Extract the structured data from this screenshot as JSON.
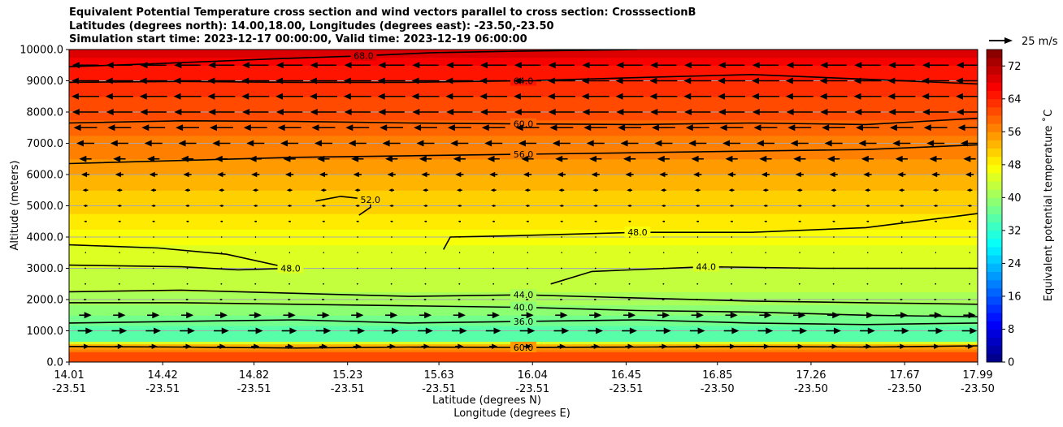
{
  "chart_data": {
    "type": "heatmap",
    "title_lines": [
      "Equivalent Potential Temperature cross section and wind vectors parallel to cross section: CrosssectionB",
      "Latitudes (degrees north): 14.00,18.00, Longitudes (degrees east): -23.50,-23.50",
      "Simulation start time: 2023-12-17 00:00:00, Valid time: 2023-12-19 06:00:00"
    ],
    "xlabel": "Latitude (degrees N)",
    "xlabel2": "Longitude (degrees E)",
    "ylabel": "Altitude (meters)",
    "xlim": [
      14.01,
      17.99
    ],
    "ylim": [
      0,
      10000
    ],
    "x_ticks_lat": [
      "14.01",
      "14.42",
      "14.82",
      "15.23",
      "15.63",
      "16.04",
      "16.45",
      "16.85",
      "17.26",
      "17.67",
      "17.99"
    ],
    "x_ticks_lon": [
      "-23.51",
      "-23.51",
      "-23.51",
      "-23.51",
      "-23.51",
      "-23.51",
      "-23.51",
      "-23.50",
      "-23.50",
      "-23.50",
      "-23.50"
    ],
    "y_ticks": [
      "0.0",
      "1000.0",
      "2000.0",
      "3000.0",
      "4000.0",
      "5000.0",
      "6000.0",
      "7000.0",
      "8000.0",
      "9000.0",
      "10000.0"
    ],
    "y_tick_values": [
      0,
      1000,
      2000,
      3000,
      4000,
      5000,
      6000,
      7000,
      8000,
      9000,
      10000
    ],
    "grid": true,
    "colorbar": {
      "label": "Equivalent potential temperature ˚C",
      "range": [
        0,
        76
      ],
      "ticks": [
        "0",
        "8",
        "16",
        "24",
        "32",
        "40",
        "48",
        "56",
        "64",
        "72"
      ],
      "tick_values": [
        0,
        8,
        16,
        24,
        32,
        40,
        48,
        56,
        64,
        72
      ],
      "colormap": "jet"
    },
    "quiver_key": {
      "label": "25 m/s"
    },
    "theta_e_profile": [
      {
        "z": 0,
        "t": 62
      },
      {
        "z": 300,
        "t": 60
      },
      {
        "z": 550,
        "t": 52
      },
      {
        "z": 700,
        "t": 36
      },
      {
        "z": 1000,
        "t": 35
      },
      {
        "z": 1500,
        "t": 38
      },
      {
        "z": 2000,
        "t": 41
      },
      {
        "z": 2500,
        "t": 43
      },
      {
        "z": 3000,
        "t": 44
      },
      {
        "z": 3500,
        "t": 45
      },
      {
        "z": 4000,
        "t": 47
      },
      {
        "z": 4500,
        "t": 49
      },
      {
        "z": 5000,
        "t": 51
      },
      {
        "z": 5500,
        "t": 52
      },
      {
        "z": 6000,
        "t": 54
      },
      {
        "z": 6500,
        "t": 56
      },
      {
        "z": 7000,
        "t": 57
      },
      {
        "z": 7500,
        "t": 59
      },
      {
        "z": 8000,
        "t": 61
      },
      {
        "z": 8500,
        "t": 62
      },
      {
        "z": 9000,
        "t": 64
      },
      {
        "z": 9500,
        "t": 66
      },
      {
        "z": 10000,
        "t": 70
      }
    ],
    "contours": [
      {
        "label": "68.0",
        "points": [
          [
            14.01,
            9450
          ],
          [
            14.4,
            9550
          ],
          [
            14.9,
            9700
          ],
          [
            15.3,
            9800
          ],
          [
            15.6,
            9900
          ],
          [
            16.0,
            9950
          ],
          [
            16.5,
            10000
          ]
        ]
      },
      {
        "label": "64.0",
        "points": [
          [
            14.01,
            8950
          ],
          [
            14.5,
            8980
          ],
          [
            15.0,
            8950
          ],
          [
            15.5,
            8950
          ],
          [
            16.0,
            9000
          ],
          [
            16.5,
            9100
          ],
          [
            17.0,
            9200
          ],
          [
            17.5,
            9050
          ],
          [
            17.99,
            8900
          ]
        ]
      },
      {
        "label": "60.0",
        "points": [
          [
            14.01,
            7650
          ],
          [
            14.5,
            7720
          ],
          [
            15.0,
            7700
          ],
          [
            15.5,
            7650
          ],
          [
            16.0,
            7620
          ],
          [
            16.5,
            7600
          ],
          [
            17.0,
            7650
          ],
          [
            17.5,
            7600
          ],
          [
            17.99,
            7800
          ]
        ]
      },
      {
        "label": "56.0",
        "points": [
          [
            14.01,
            6350
          ],
          [
            14.5,
            6450
          ],
          [
            15.0,
            6550
          ],
          [
            15.5,
            6600
          ],
          [
            16.0,
            6650
          ],
          [
            16.5,
            6700
          ],
          [
            17.0,
            6750
          ],
          [
            17.5,
            6800
          ],
          [
            17.99,
            6950
          ]
        ]
      },
      {
        "label": "52.0",
        "points": [
          [
            15.09,
            5150
          ],
          [
            15.2,
            5300
          ],
          [
            15.33,
            5200
          ],
          [
            15.33,
            4950
          ],
          [
            15.28,
            4700
          ]
        ]
      },
      {
        "label": "48.0",
        "points": [
          [
            14.01,
            3750
          ],
          [
            14.4,
            3650
          ],
          [
            14.7,
            3450
          ],
          [
            14.98,
            3000
          ],
          [
            14.75,
            2950
          ],
          [
            14.5,
            3050
          ],
          [
            14.01,
            3100
          ]
        ]
      },
      {
        "label": "48.0",
        "points": [
          [
            15.65,
            3600
          ],
          [
            15.68,
            4000
          ],
          [
            16.0,
            4050
          ],
          [
            16.5,
            4150
          ],
          [
            17.0,
            4150
          ],
          [
            17.5,
            4300
          ],
          [
            17.99,
            4750
          ]
        ]
      },
      {
        "label": "44.0",
        "points": [
          [
            16.12,
            2500
          ],
          [
            16.3,
            2900
          ],
          [
            16.8,
            3050
          ],
          [
            17.3,
            3000
          ],
          [
            17.99,
            3000
          ]
        ]
      },
      {
        "label": "44.0",
        "points": [
          [
            14.01,
            2250
          ],
          [
            14.5,
            2300
          ],
          [
            15.0,
            2200
          ],
          [
            15.5,
            2100
          ],
          [
            16.0,
            2150
          ],
          [
            16.5,
            2050
          ],
          [
            17.0,
            1950
          ],
          [
            17.5,
            1900
          ],
          [
            17.99,
            1850
          ]
        ]
      },
      {
        "label": "40.0",
        "points": [
          [
            14.01,
            1900
          ],
          [
            14.5,
            1900
          ],
          [
            15.0,
            1850
          ],
          [
            15.5,
            1800
          ],
          [
            16.0,
            1750
          ],
          [
            16.5,
            1650
          ],
          [
            17.0,
            1600
          ],
          [
            17.5,
            1500
          ],
          [
            17.99,
            1450
          ]
        ]
      },
      {
        "label": "36.0",
        "points": [
          [
            14.01,
            1250
          ],
          [
            14.5,
            1300
          ],
          [
            15.0,
            1350
          ],
          [
            15.5,
            1250
          ],
          [
            16.0,
            1300
          ],
          [
            16.5,
            1350
          ],
          [
            17.0,
            1250
          ],
          [
            17.5,
            1200
          ],
          [
            17.99,
            1250
          ]
        ]
      },
      {
        "label": "60.0",
        "points": [
          [
            14.01,
            500
          ],
          [
            14.5,
            480
          ],
          [
            15.0,
            450
          ],
          [
            15.5,
            480
          ],
          [
            16.0,
            470
          ],
          [
            16.5,
            480
          ],
          [
            17.0,
            500
          ],
          [
            17.5,
            480
          ],
          [
            17.99,
            520
          ]
        ]
      }
    ],
    "wind_u_profile": [
      {
        "z": 500,
        "u": 0.3
      },
      {
        "z": 1000,
        "u": 0.55
      },
      {
        "z": 1500,
        "u": 0.45
      },
      {
        "z": 2000,
        "u": 0.1
      },
      {
        "z": 2500,
        "u": 0.0
      },
      {
        "z": 3000,
        "u": 0.0
      },
      {
        "z": 3500,
        "u": -0.05
      },
      {
        "z": 4000,
        "u": -0.05
      },
      {
        "z": 4500,
        "u": -0.1
      },
      {
        "z": 5000,
        "u": -0.15
      },
      {
        "z": 5500,
        "u": -0.2
      },
      {
        "z": 6000,
        "u": -0.3
      },
      {
        "z": 6500,
        "u": -0.45
      },
      {
        "z": 7000,
        "u": -0.65
      },
      {
        "z": 7500,
        "u": -0.85
      },
      {
        "z": 8000,
        "u": -0.95
      },
      {
        "z": 8500,
        "u": -1.0
      },
      {
        "z": 9000,
        "u": -1.0
      },
      {
        "z": 9500,
        "u": -0.95
      }
    ]
  }
}
